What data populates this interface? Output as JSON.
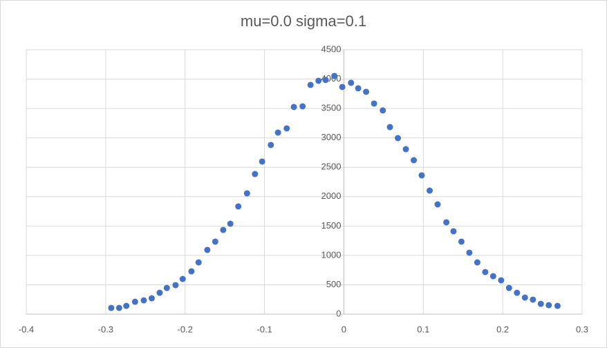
{
  "chart_data": {
    "type": "scatter",
    "title": "mu=0.0 sigma=0.1",
    "color": "#4472c4",
    "grid": true,
    "xlim": [
      -0.4,
      0.3
    ],
    "xticks": [
      -0.4,
      -0.3,
      -0.2,
      -0.1,
      0,
      0.1,
      0.2,
      0.3
    ],
    "ylim": [
      0,
      4500
    ],
    "yticks": [
      0,
      500,
      1000,
      1500,
      2000,
      2500,
      3000,
      3500,
      4000,
      4500
    ],
    "series": [
      {
        "name": "",
        "color": "#4472c4",
        "x": [
          -0.293,
          -0.283,
          -0.274,
          -0.263,
          -0.252,
          -0.242,
          -0.232,
          -0.223,
          -0.212,
          -0.203,
          -0.192,
          -0.183,
          -0.172,
          -0.162,
          -0.152,
          -0.143,
          -0.133,
          -0.122,
          -0.112,
          -0.103,
          -0.092,
          -0.083,
          -0.072,
          -0.063,
          -0.052,
          -0.042,
          -0.032,
          -0.023,
          -0.012,
          -0.002,
          0.009,
          0.018,
          0.028,
          0.038,
          0.049,
          0.058,
          0.068,
          0.078,
          0.088,
          0.098,
          0.108,
          0.118,
          0.129,
          0.138,
          0.148,
          0.158,
          0.168,
          0.178,
          0.188,
          0.198,
          0.208,
          0.218,
          0.228,
          0.238,
          0.248,
          0.258,
          0.269
        ],
        "values": [
          106,
          106,
          141,
          211,
          235,
          270,
          364,
          446,
          494,
          599,
          729,
          881,
          1093,
          1234,
          1434,
          1539,
          1833,
          2056,
          2385,
          2597,
          2879,
          3090,
          3161,
          3525,
          3537,
          3901,
          3972,
          3985,
          4054,
          3866,
          3937,
          3843,
          3784,
          3584,
          3467,
          3184,
          2996,
          2808,
          2620,
          2362,
          2103,
          1868,
          1563,
          1410,
          1234,
          1046,
          881,
          717,
          646,
          576,
          446,
          364,
          282,
          247,
          176,
          153,
          141
        ]
      }
    ]
  }
}
